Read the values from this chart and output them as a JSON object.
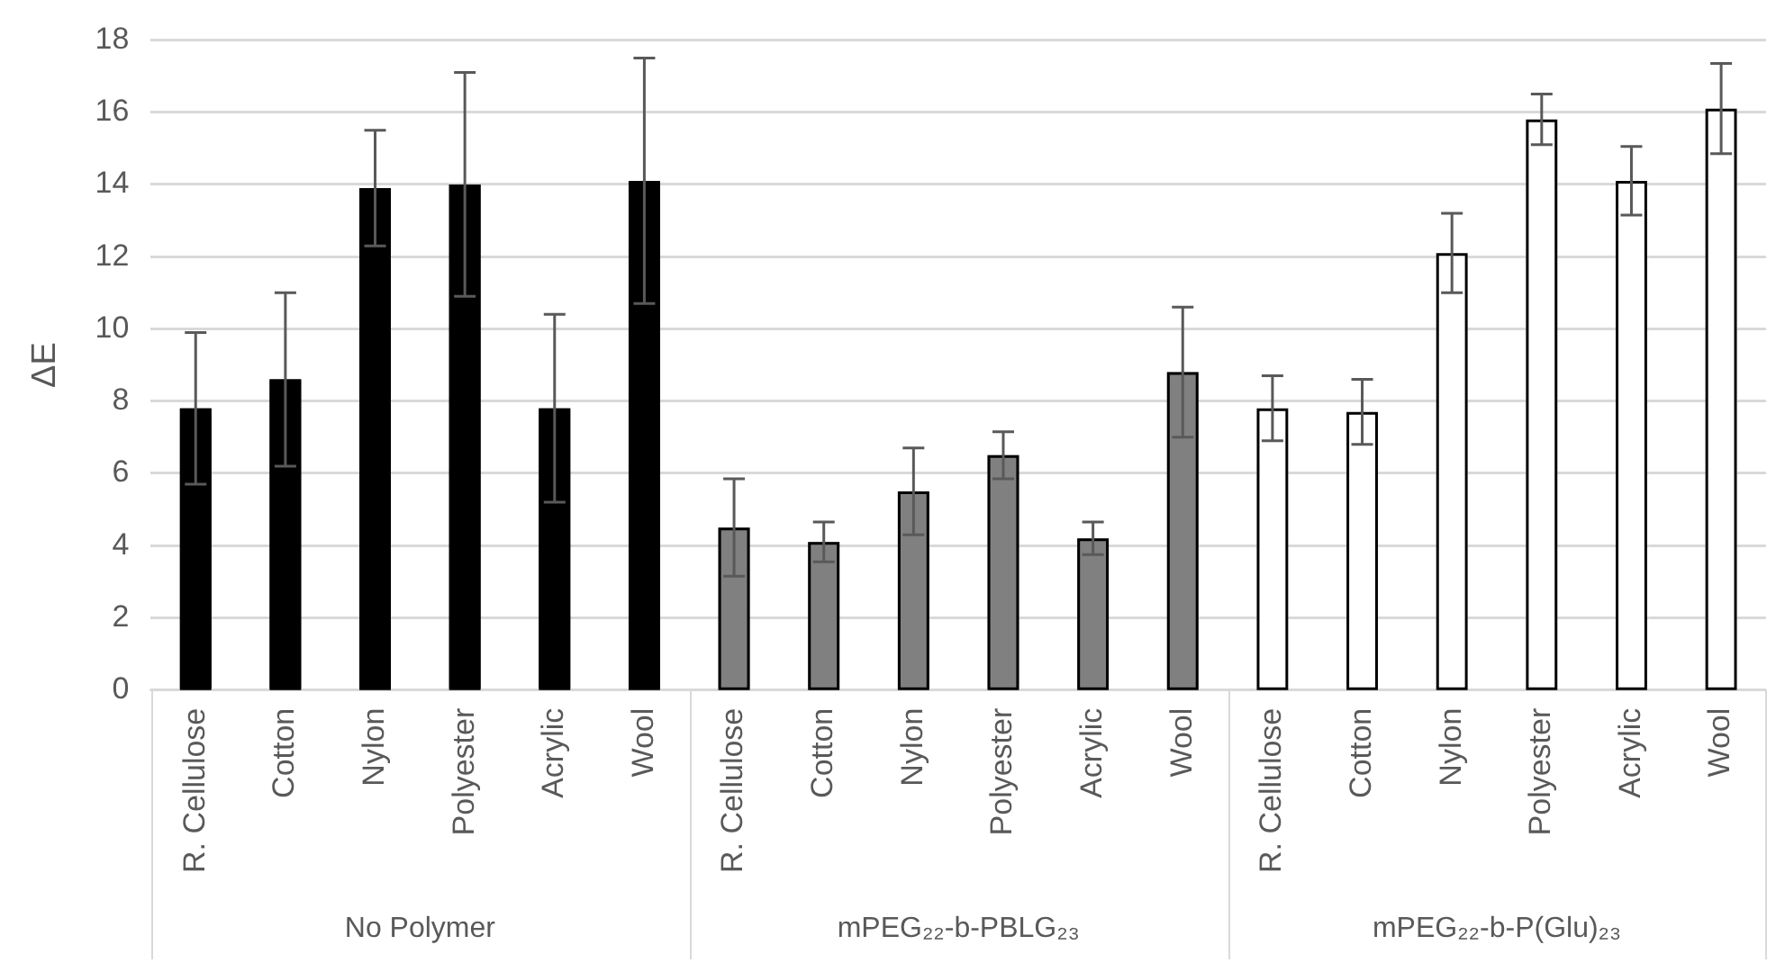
{
  "chart_data": {
    "type": "bar",
    "ylabel": "ΔE",
    "categories": [
      "R. Cellulose",
      "Cotton",
      "Nylon",
      "Polyester",
      "Acrylic",
      "Wool",
      "R. Cellulose",
      "Cotton",
      "Nylon",
      "Polyester",
      "Acrylic",
      "Wool",
      "R. Cellulose",
      "Cotton",
      "Nylon",
      "Polyester",
      "Acrylic",
      "Wool"
    ],
    "values": [
      7.8,
      8.6,
      13.9,
      14.0,
      7.8,
      14.1,
      4.5,
      4.1,
      5.5,
      6.5,
      4.2,
      8.8,
      7.8,
      7.7,
      12.1,
      15.8,
      14.1,
      16.1
    ],
    "errors": [
      2.1,
      2.4,
      1.6,
      3.1,
      2.6,
      3.4,
      1.35,
      0.55,
      1.2,
      0.65,
      0.45,
      1.8,
      0.9,
      0.9,
      1.1,
      0.7,
      0.95,
      1.25
    ],
    "colors": [
      "#000000",
      "#000000",
      "#000000",
      "#000000",
      "#000000",
      "#000000",
      "#808080",
      "#808080",
      "#808080",
      "#808080",
      "#808080",
      "#808080",
      "#ffffff",
      "#ffffff",
      "#ffffff",
      "#ffffff",
      "#ffffff",
      "#ffffff"
    ],
    "annotations": [
      "No Polymer",
      "mPEG₂₂-b-PBLG₂₃",
      "mPEG₂₂-b-P(Glu)₂₃"
    ],
    "ylim": [
      0,
      18
    ],
    "yticks": [
      0,
      2,
      4,
      6,
      8,
      10,
      12,
      14,
      16,
      18
    ],
    "grid": "y",
    "legend": false
  }
}
